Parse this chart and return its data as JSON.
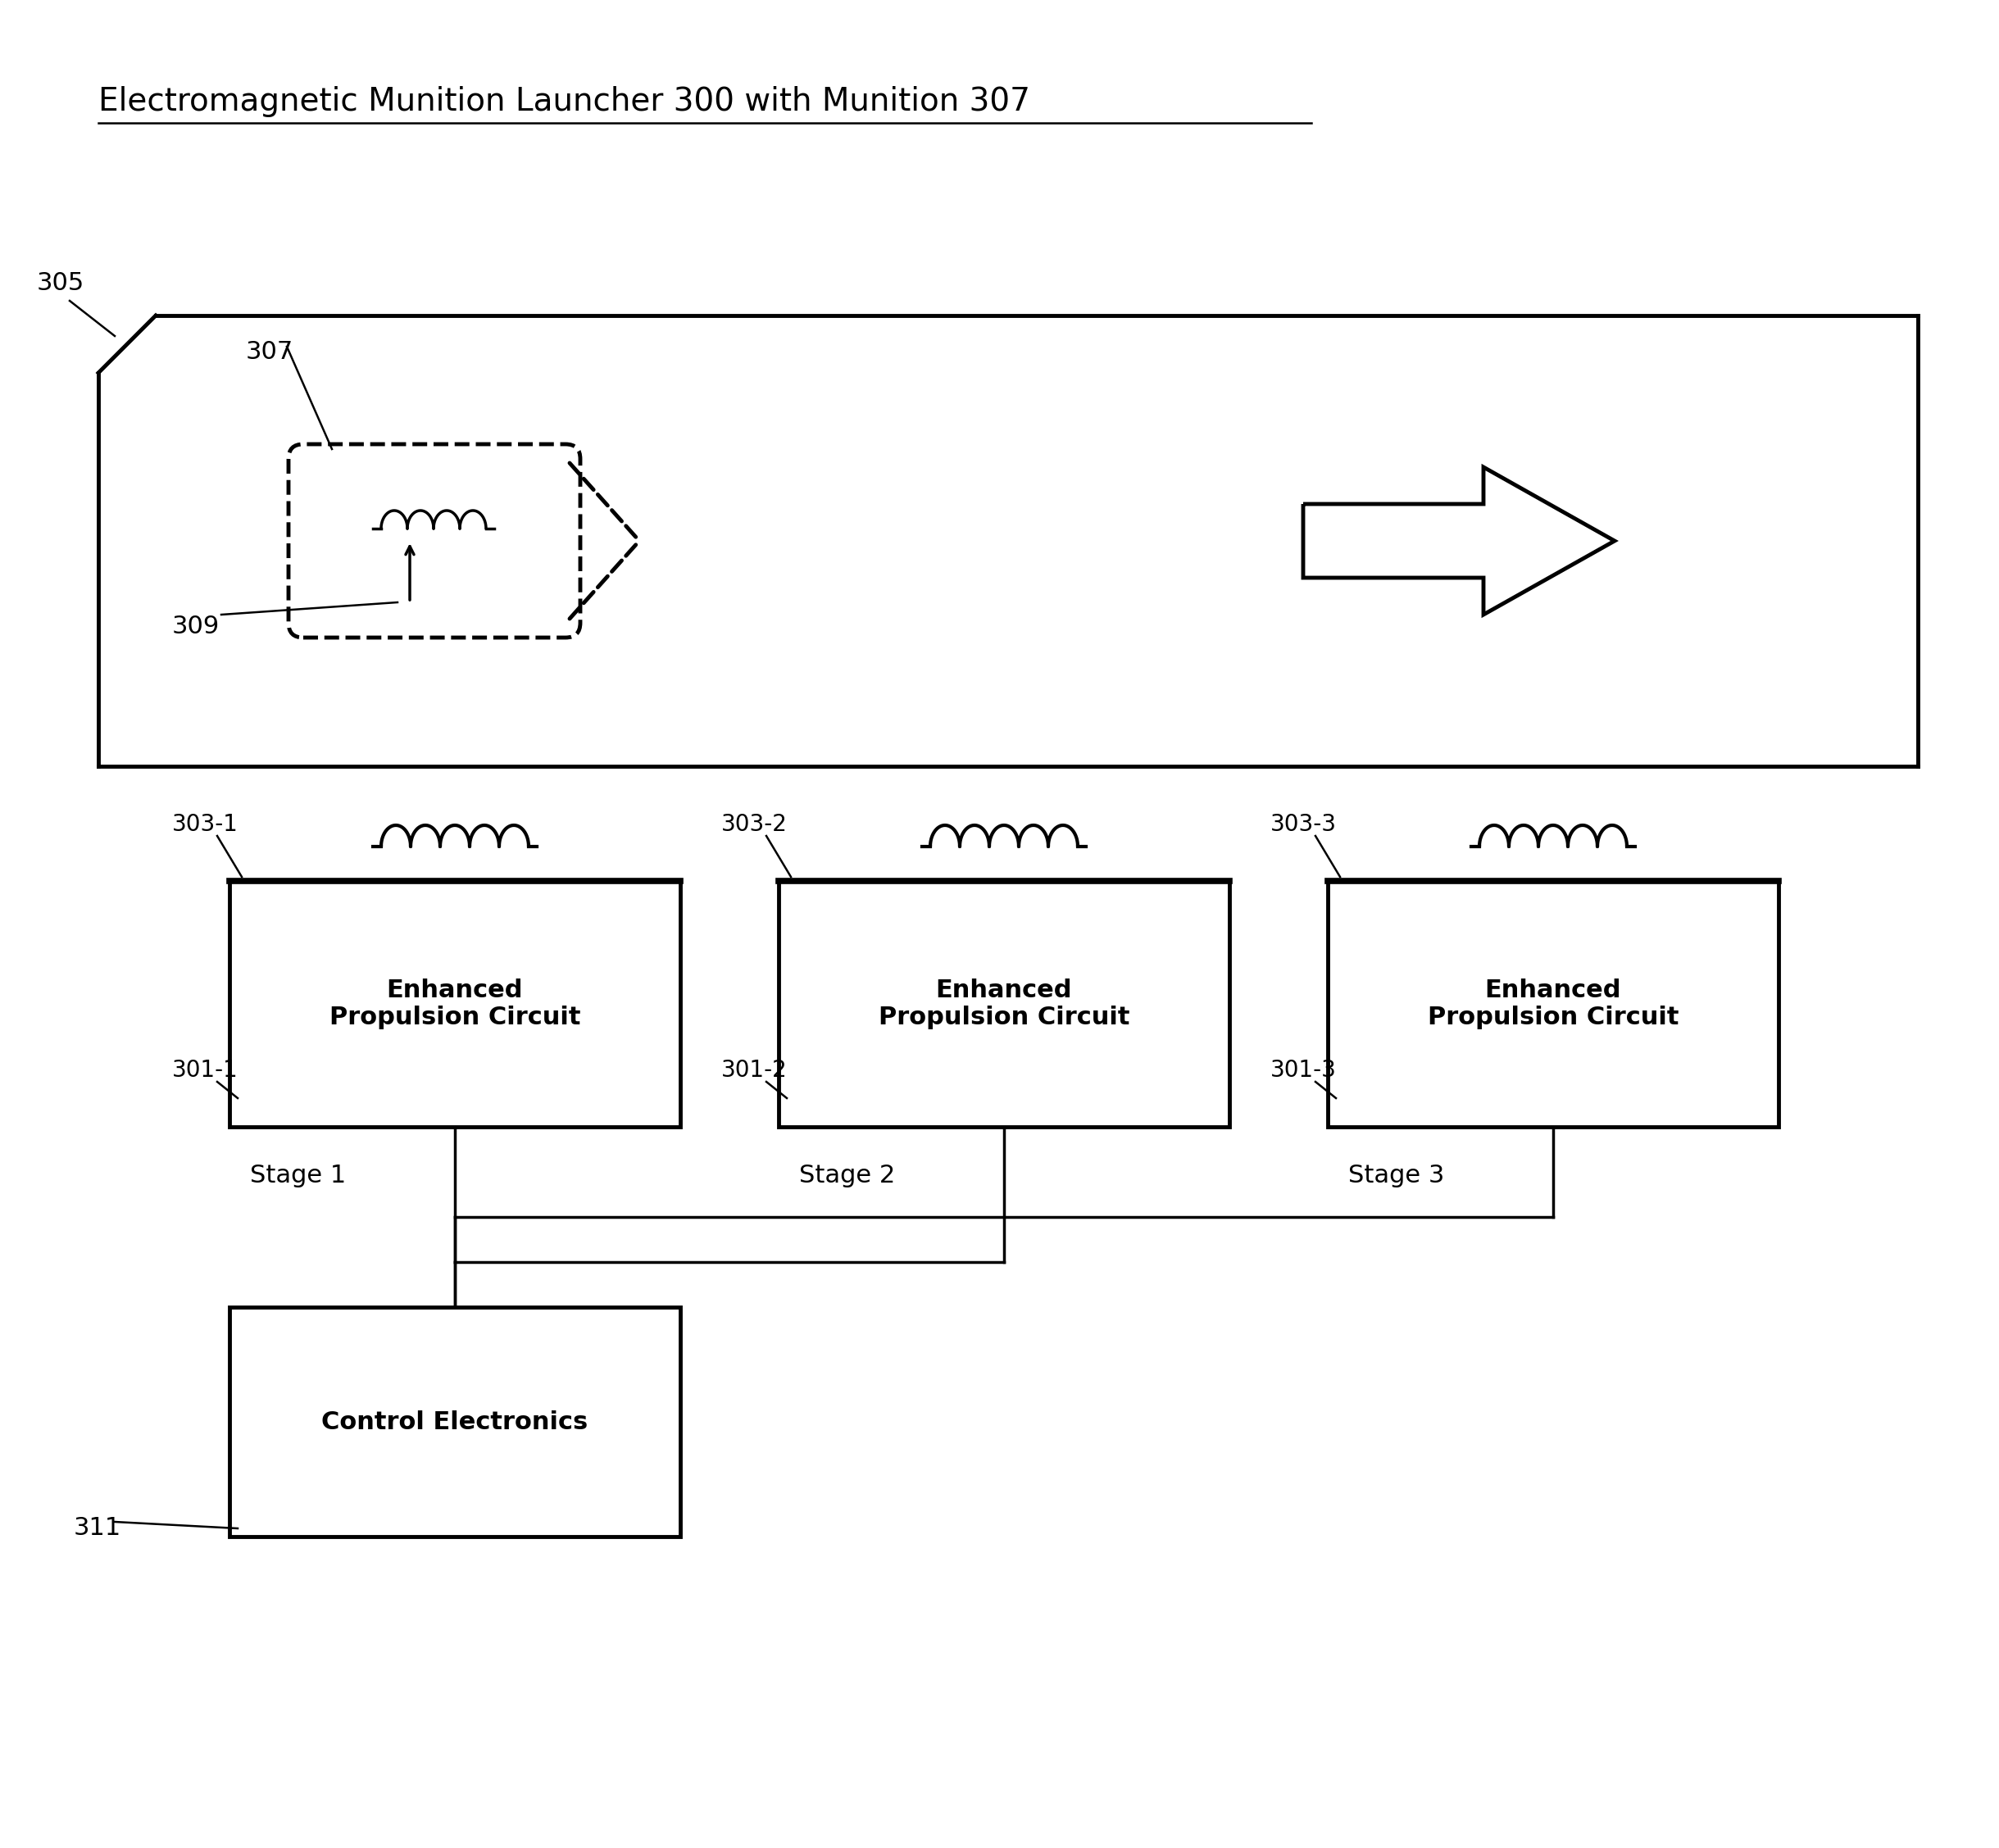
{
  "title": "Electromagnetic Munition Launcher 300 with Munition 307",
  "title_fontsize": 28,
  "label_fontsize": 22,
  "small_label_fontsize": 20,
  "bg_color": "#ffffff",
  "line_color": "#000000",
  "box_text": "Enhanced\nPropulsion Circuit",
  "control_text": "Control Electronics",
  "control_label": "311",
  "launcher_label": "305",
  "munition_label": "307",
  "coil_label": "309",
  "box_configs": [
    {
      "x": 2.8,
      "label_top": "303-1",
      "label_left": "301-1",
      "stage": "Stage 1"
    },
    {
      "x": 9.5,
      "label_top": "303-2",
      "label_left": "301-2",
      "stage": "Stage 2"
    },
    {
      "x": 16.2,
      "label_top": "303-3",
      "label_left": "301-3",
      "stage": "Stage 3"
    }
  ]
}
